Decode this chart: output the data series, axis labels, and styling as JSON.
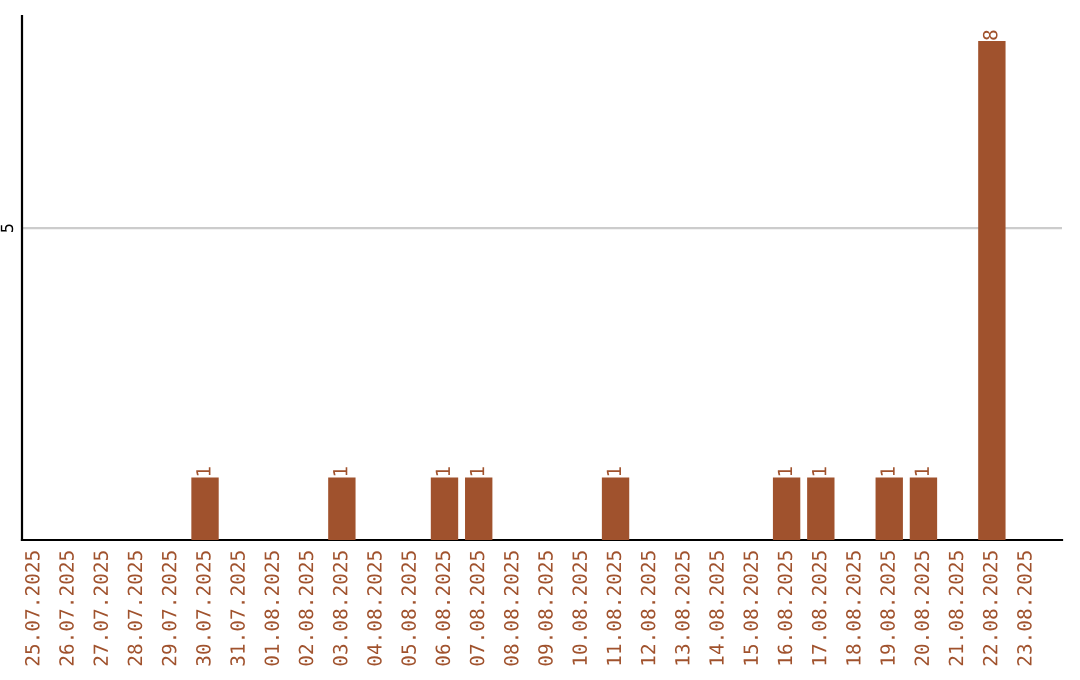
{
  "chart_data": {
    "type": "bar",
    "categories": [
      "25.07.2025",
      "26.07.2025",
      "27.07.2025",
      "28.07.2025",
      "29.07.2025",
      "30.07.2025",
      "31.07.2025",
      "01.08.2025",
      "02.08.2025",
      "03.08.2025",
      "04.08.2025",
      "05.08.2025",
      "06.08.2025",
      "07.08.2025",
      "08.08.2025",
      "09.08.2025",
      "10.08.2025",
      "11.08.2025",
      "12.08.2025",
      "13.08.2025",
      "14.08.2025",
      "15.08.2025",
      "16.08.2025",
      "17.08.2025",
      "18.08.2025",
      "19.08.2025",
      "20.08.2025",
      "21.08.2025",
      "22.08.2025",
      "23.08.2025"
    ],
    "values": [
      0,
      0,
      0,
      0,
      0,
      1,
      0,
      0,
      0,
      1,
      0,
      0,
      1,
      1,
      0,
      0,
      0,
      1,
      0,
      0,
      0,
      0,
      1,
      1,
      0,
      1,
      1,
      0,
      8,
      0
    ],
    "value_labels": [
      null,
      null,
      null,
      null,
      null,
      "1",
      null,
      null,
      null,
      "1",
      null,
      null,
      "1",
      "1",
      null,
      null,
      null,
      "1",
      null,
      null,
      null,
      null,
      "1",
      "1",
      null,
      "1",
      "1",
      null,
      "8",
      null
    ],
    "color": "#a0522d",
    "ylim": [
      0,
      8.4
    ],
    "yticks": [
      5
    ],
    "grid": "y"
  }
}
